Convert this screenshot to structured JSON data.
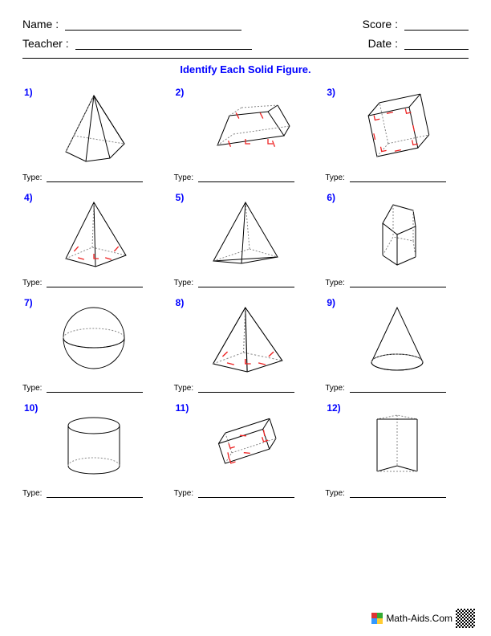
{
  "header": {
    "name_label": "Name :",
    "teacher_label": "Teacher :",
    "score_label": "Score :",
    "date_label": "Date :"
  },
  "title": "Identify Each Solid Figure.",
  "type_label": "Type:",
  "problems": [
    {
      "n": "1)",
      "shape": "pentagonal-pyramid",
      "marks": false
    },
    {
      "n": "2)",
      "shape": "trapezoidal-prism",
      "marks": true
    },
    {
      "n": "3)",
      "shape": "cube",
      "marks": true
    },
    {
      "n": "4)",
      "shape": "square-pyramid",
      "marks": true
    },
    {
      "n": "5)",
      "shape": "tetrahedron",
      "marks": false
    },
    {
      "n": "6)",
      "shape": "pentagonal-prism",
      "marks": false
    },
    {
      "n": "7)",
      "shape": "sphere",
      "marks": false
    },
    {
      "n": "8)",
      "shape": "square-pyramid-wide",
      "marks": true
    },
    {
      "n": "9)",
      "shape": "cone",
      "marks": false
    },
    {
      "n": "10)",
      "shape": "cylinder",
      "marks": false
    },
    {
      "n": "11)",
      "shape": "rectangular-prism",
      "marks": true
    },
    {
      "n": "12)",
      "shape": "triangular-prism",
      "marks": false
    }
  ],
  "footer": {
    "text": "Math-Aids.Com"
  },
  "colors": {
    "label": "#0000ff",
    "mark": "#ee2222",
    "stroke": "#000000",
    "dash": "#888888"
  }
}
